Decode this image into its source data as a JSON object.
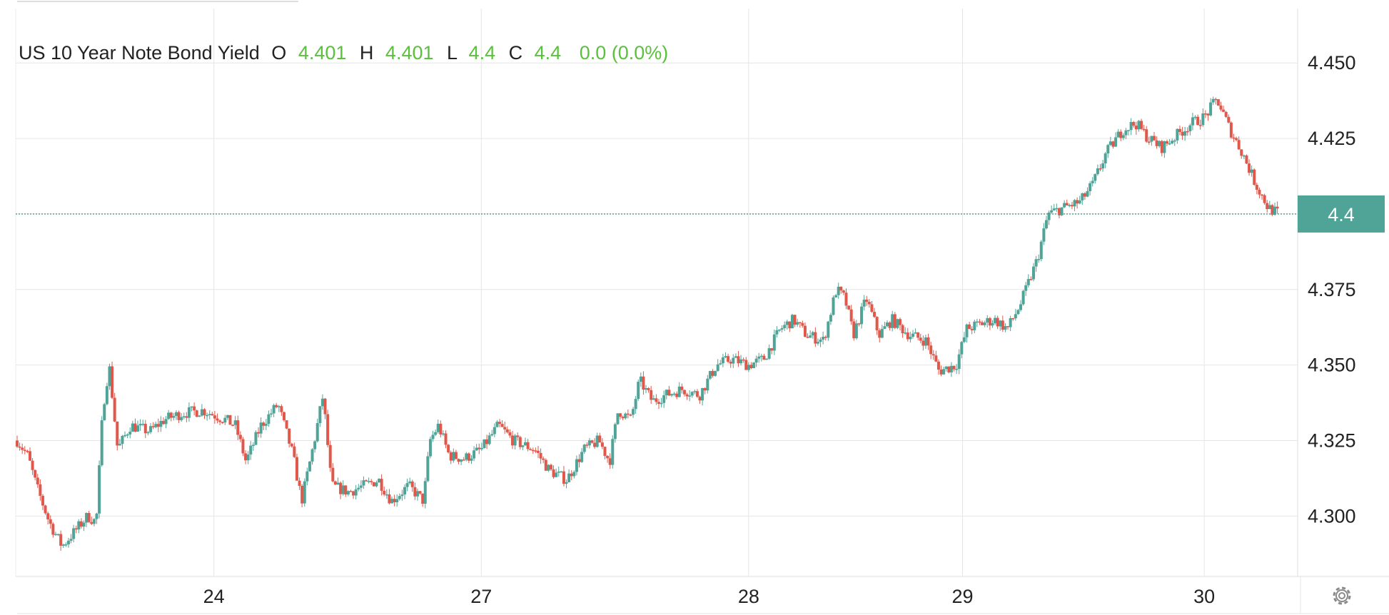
{
  "legend": {
    "title": "US 10 Year Note Bond Yield",
    "open_label": "O",
    "open_value": "4.401",
    "high_label": "H",
    "high_value": "4.401",
    "low_label": "L",
    "low_value": "4.4",
    "close_label": "C",
    "close_value": "4.4",
    "change": "0.0 (0.0%)"
  },
  "price_label": "4.4",
  "colors": {
    "up": "#4fa397",
    "down": "#e0584c",
    "value_text": "#5ac13b",
    "grid": "#e6e6e6",
    "price_line": "#4fa397",
    "price_label_bg": "#4fa397",
    "axis_text": "#222222"
  },
  "icons": {
    "settings": "gear-icon"
  },
  "chart_data": {
    "type": "candlestick",
    "title": "US 10 Year Note Bond Yield",
    "xlabel": "",
    "ylabel": "",
    "y_ticks": [
      "4.300",
      "4.325",
      "4.350",
      "4.375",
      "4.400",
      "4.425",
      "4.450"
    ],
    "y_tick_values": [
      4.3,
      4.325,
      4.35,
      4.375,
      4.4,
      4.425,
      4.45
    ],
    "ylim": [
      4.28,
      4.468
    ],
    "x_ticks": [
      {
        "label": "24",
        "day": 0.95
      },
      {
        "label": "27",
        "day": 2.2
      },
      {
        "label": "28",
        "day": 3.45
      },
      {
        "label": "29",
        "day": 4.45
      },
      {
        "label": "30",
        "day": 5.58
      }
    ],
    "xlim": [
      0.03,
      5.95
    ],
    "last_price": 4.4,
    "grid": true,
    "keypoints": [
      [
        0.03,
        4.325
      ],
      [
        0.08,
        4.32
      ],
      [
        0.12,
        4.31
      ],
      [
        0.18,
        4.298
      ],
      [
        0.24,
        4.29
      ],
      [
        0.3,
        4.295
      ],
      [
        0.36,
        4.3
      ],
      [
        0.4,
        4.298
      ],
      [
        0.43,
        4.335
      ],
      [
        0.46,
        4.35
      ],
      [
        0.5,
        4.322
      ],
      [
        0.56,
        4.33
      ],
      [
        0.65,
        4.328
      ],
      [
        0.72,
        4.332
      ],
      [
        0.8,
        4.334
      ],
      [
        0.9,
        4.335
      ],
      [
        1.0,
        4.332
      ],
      [
        1.05,
        4.33
      ],
      [
        1.1,
        4.318
      ],
      [
        1.17,
        4.33
      ],
      [
        1.25,
        4.337
      ],
      [
        1.32,
        4.32
      ],
      [
        1.36,
        4.305
      ],
      [
        1.42,
        4.325
      ],
      [
        1.46,
        4.34
      ],
      [
        1.5,
        4.31
      ],
      [
        1.58,
        4.308
      ],
      [
        1.65,
        4.31
      ],
      [
        1.72,
        4.312
      ],
      [
        1.78,
        4.305
      ],
      [
        1.86,
        4.31
      ],
      [
        1.93,
        4.305
      ],
      [
        1.96,
        4.325
      ],
      [
        2.0,
        4.33
      ],
      [
        2.05,
        4.32
      ],
      [
        2.12,
        4.319
      ],
      [
        2.2,
        4.322
      ],
      [
        2.28,
        4.33
      ],
      [
        2.35,
        4.325
      ],
      [
        2.45,
        4.322
      ],
      [
        2.52,
        4.315
      ],
      [
        2.6,
        4.312
      ],
      [
        2.68,
        4.322
      ],
      [
        2.75,
        4.325
      ],
      [
        2.8,
        4.318
      ],
      [
        2.84,
        4.335
      ],
      [
        2.9,
        4.332
      ],
      [
        2.94,
        4.345
      ],
      [
        3.0,
        4.338
      ],
      [
        3.06,
        4.34
      ],
      [
        3.14,
        4.342
      ],
      [
        3.22,
        4.34
      ],
      [
        3.3,
        4.35
      ],
      [
        3.37,
        4.352
      ],
      [
        3.45,
        4.35
      ],
      [
        3.52,
        4.352
      ],
      [
        3.6,
        4.362
      ],
      [
        3.66,
        4.365
      ],
      [
        3.72,
        4.36
      ],
      [
        3.8,
        4.358
      ],
      [
        3.86,
        4.375
      ],
      [
        3.9,
        4.372
      ],
      [
        3.94,
        4.36
      ],
      [
        4.0,
        4.372
      ],
      [
        4.06,
        4.36
      ],
      [
        4.12,
        4.365
      ],
      [
        4.2,
        4.36
      ],
      [
        4.28,
        4.358
      ],
      [
        4.34,
        4.348
      ],
      [
        4.42,
        4.35
      ],
      [
        4.47,
        4.362
      ],
      [
        4.55,
        4.364
      ],
      [
        4.6,
        4.365
      ],
      [
        4.66,
        4.362
      ],
      [
        4.72,
        4.37
      ],
      [
        4.8,
        4.385
      ],
      [
        4.85,
        4.4
      ],
      [
        4.92,
        4.402
      ],
      [
        5.0,
        4.404
      ],
      [
        5.06,
        4.41
      ],
      [
        5.12,
        4.42
      ],
      [
        5.2,
        4.428
      ],
      [
        5.26,
        4.43
      ],
      [
        5.32,
        4.425
      ],
      [
        5.38,
        4.422
      ],
      [
        5.45,
        4.426
      ],
      [
        5.52,
        4.43
      ],
      [
        5.58,
        4.432
      ],
      [
        5.64,
        4.438
      ],
      [
        5.7,
        4.428
      ],
      [
        5.76,
        4.42
      ],
      [
        5.82,
        4.41
      ],
      [
        5.88,
        4.402
      ],
      [
        5.93,
        4.4
      ]
    ]
  }
}
